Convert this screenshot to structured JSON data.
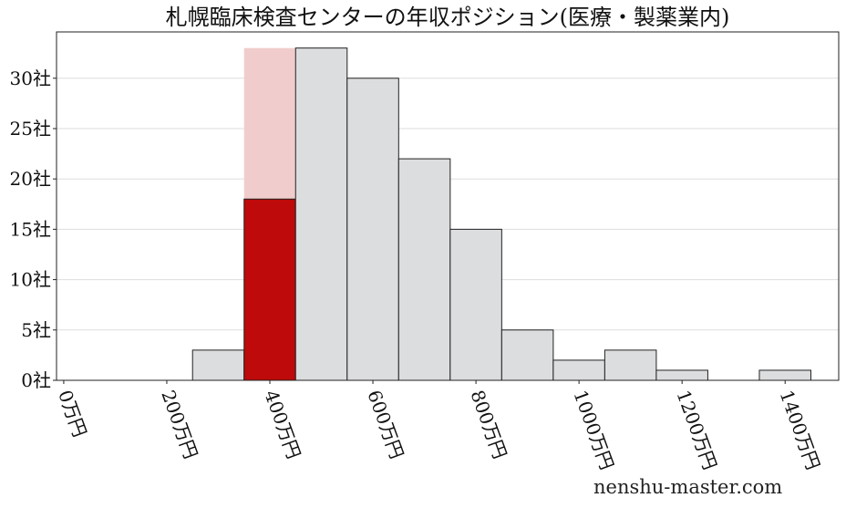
{
  "chart_data": {
    "type": "bar",
    "title": "札幌臨床検査センターの年収ポジション(医療・製薬業内)",
    "xlabel": "",
    "ylabel": "",
    "x_unit_suffix": "万円",
    "y_unit_suffix": "社",
    "bin_width": 100,
    "bins": [
      300,
      400,
      500,
      600,
      700,
      800,
      900,
      1000,
      1100,
      1200,
      1300,
      1400
    ],
    "values": [
      3,
      33,
      33,
      30,
      22,
      15,
      5,
      2,
      3,
      1,
      0,
      1
    ],
    "highlight": {
      "bin": 400,
      "value": 18,
      "total": 33,
      "color": "#be0a0a",
      "background_color": "#f0cccc"
    },
    "bar_color": "#dcdddf",
    "xticks": [
      0,
      200,
      400,
      600,
      800,
      1000,
      1200,
      1400
    ],
    "xtick_labels": [
      "0万円",
      "200万円",
      "400万円",
      "600万円",
      "800万円",
      "1000万円",
      "1200万円",
      "1400万円"
    ],
    "yticks": [
      0,
      5,
      10,
      15,
      20,
      25,
      30
    ],
    "ytick_labels": [
      "0社",
      "5社",
      "10社",
      "15社",
      "20社",
      "25社",
      "30社"
    ],
    "xlim": [
      -14,
      1504
    ],
    "ylim": [
      0,
      34.6
    ],
    "grid": "horizontal",
    "legend": "none"
  },
  "watermark": "nenshu-master.com"
}
